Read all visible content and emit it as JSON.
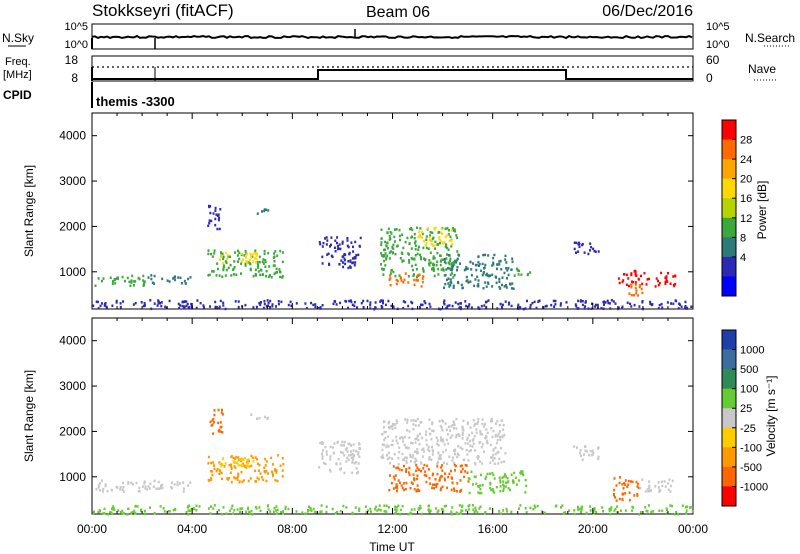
{
  "header": {
    "station": "Stokkseyri (fitACF)",
    "beam": "Beam 06",
    "date": "06/Dec/2016"
  },
  "top_panels": {
    "nsky_label": "N.Sky",
    "nsearch_label": "N.Search",
    "log_top_tick": "10^5",
    "log_bottom_tick": "10^0",
    "freq_label_1": "Freq.",
    "freq_label_2": "[MHz]",
    "freq_ticks": [
      "18",
      "8"
    ],
    "nave_label": "Nave",
    "nave_ticks": [
      "60",
      "0"
    ],
    "cpid_label": "CPID",
    "cpid_value": "themis -3300"
  },
  "colorbars": {
    "power": {
      "label": "Power [dB]",
      "ticks": [
        "28",
        "24",
        "20",
        "16",
        "12",
        "8",
        "4"
      ],
      "colors": [
        "#ff0000",
        "#ff6a00",
        "#ffa500",
        "#ffd800",
        "#b5d400",
        "#3aa83a",
        "#2d7a78",
        "#2a2ab5",
        "#0000ff"
      ]
    },
    "velocity": {
      "label": "Velocity [m s⁻¹]",
      "ticks": [
        "1000",
        "500",
        "100",
        "25",
        "-25",
        "-100",
        "-500",
        "-1000"
      ],
      "colors": [
        "#1e3fa8",
        "#3b6e9e",
        "#2e8b57",
        "#66cc33",
        "#c8c8c8",
        "#ffcc00",
        "#ff9900",
        "#ff6600",
        "#ff0000"
      ]
    }
  },
  "chart_data": [
    {
      "type": "heatmap",
      "title": "Power",
      "ylabel": "Slant Range [km]",
      "ylim": [
        180,
        4500
      ],
      "yticks": [
        1000,
        2000,
        3000,
        4000
      ],
      "xlim": [
        0,
        24
      ],
      "blobs": [
        {
          "t0": 0.1,
          "t1": 2.2,
          "r0": 700,
          "r1": 950,
          "c": "#3aa83a"
        },
        {
          "t0": 2.2,
          "t1": 3.9,
          "r0": 750,
          "r1": 950,
          "c": "#2d7a78"
        },
        {
          "t0": 4.6,
          "t1": 7.6,
          "r0": 900,
          "r1": 1500,
          "c": "#3aa83a"
        },
        {
          "t0": 5.0,
          "t1": 6.6,
          "r0": 1200,
          "r1": 1450,
          "c": "#ffd800"
        },
        {
          "t0": 4.6,
          "t1": 5.2,
          "r0": 1950,
          "r1": 2500,
          "c": "#2a2ab5"
        },
        {
          "t0": 6.3,
          "t1": 7.0,
          "r0": 2300,
          "r1": 2400,
          "c": "#2d7a78"
        },
        {
          "t0": 9.0,
          "t1": 10.7,
          "r0": 1100,
          "r1": 1800,
          "c": "#2a2ab5"
        },
        {
          "t0": 11.5,
          "t1": 14.6,
          "r0": 900,
          "r1": 2000,
          "c": "#3aa83a"
        },
        {
          "t0": 13.0,
          "t1": 14.4,
          "r0": 1600,
          "r1": 2000,
          "c": "#ffd800"
        },
        {
          "t0": 11.8,
          "t1": 13.2,
          "r0": 700,
          "r1": 1000,
          "c": "#ff6a00"
        },
        {
          "t0": 14.0,
          "t1": 16.8,
          "r0": 650,
          "r1": 1400,
          "c": "#2d7a78"
        },
        {
          "t0": 16.8,
          "t1": 17.6,
          "r0": 900,
          "r1": 1100,
          "c": "#3aa83a"
        },
        {
          "t0": 19.2,
          "t1": 20.3,
          "r0": 1400,
          "r1": 1700,
          "c": "#2a2ab5"
        },
        {
          "t0": 21.0,
          "t1": 23.3,
          "r0": 700,
          "r1": 1050,
          "c": "#ff0000"
        },
        {
          "t0": 21.2,
          "t1": 22.0,
          "r0": 500,
          "r1": 800,
          "c": "#ff6a00"
        },
        {
          "t0": 0.0,
          "t1": 24.0,
          "r0": 200,
          "r1": 400,
          "c": "#2a2ab5"
        }
      ]
    },
    {
      "type": "heatmap",
      "title": "Velocity",
      "ylabel": "Slant Range [km]",
      "xlabel": "Time UT",
      "ylim": [
        180,
        4500
      ],
      "yticks": [
        1000,
        2000,
        3000,
        4000
      ],
      "xlim": [
        0,
        24
      ],
      "xticks": [
        "00:00",
        "04:00",
        "08:00",
        "12:00",
        "16:00",
        "20:00",
        "00:00"
      ],
      "blobs": [
        {
          "t0": 0.1,
          "t1": 3.9,
          "r0": 700,
          "r1": 950,
          "c": "#c8c8c8"
        },
        {
          "t0": 4.6,
          "t1": 7.6,
          "r0": 900,
          "r1": 1500,
          "c": "#ff9900"
        },
        {
          "t0": 5.0,
          "t1": 6.5,
          "r0": 1200,
          "r1": 1450,
          "c": "#ffcc00"
        },
        {
          "t0": 4.6,
          "t1": 5.2,
          "r0": 1950,
          "r1": 2500,
          "c": "#ff6600"
        },
        {
          "t0": 6.3,
          "t1": 7.0,
          "r0": 2300,
          "r1": 2400,
          "c": "#c8c8c8"
        },
        {
          "t0": 9.0,
          "t1": 10.7,
          "r0": 1100,
          "r1": 1800,
          "c": "#c8c8c8"
        },
        {
          "t0": 11.5,
          "t1": 16.5,
          "r0": 1300,
          "r1": 2300,
          "c": "#c8c8c8"
        },
        {
          "t0": 11.8,
          "t1": 15.0,
          "r0": 700,
          "r1": 1300,
          "c": "#ff6600"
        },
        {
          "t0": 15.0,
          "t1": 17.3,
          "r0": 650,
          "r1": 1150,
          "c": "#66cc33"
        },
        {
          "t0": 19.2,
          "t1": 20.3,
          "r0": 1400,
          "r1": 1700,
          "c": "#c8c8c8"
        },
        {
          "t0": 20.8,
          "t1": 21.8,
          "r0": 500,
          "r1": 1050,
          "c": "#ff6600"
        },
        {
          "t0": 21.8,
          "t1": 23.3,
          "r0": 700,
          "r1": 1000,
          "c": "#c8c8c8"
        },
        {
          "t0": 0.0,
          "t1": 24.0,
          "r0": 200,
          "r1": 400,
          "c": "#66cc33"
        }
      ]
    }
  ]
}
